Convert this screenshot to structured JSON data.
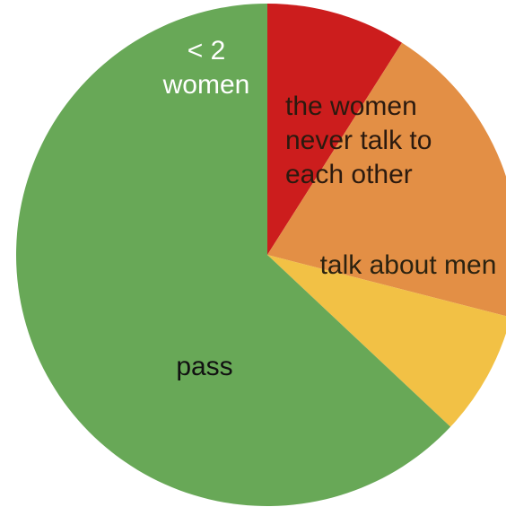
{
  "chart_data": {
    "type": "pie",
    "slices": [
      {
        "label": "< 2 women",
        "label_lines": [
          "< 2",
          "women"
        ],
        "value": 9,
        "color": "#cc1d1d",
        "text_color": "#ffffff"
      },
      {
        "label": "the women never talk to each other",
        "label_lines": [
          "the women",
          "never talk to",
          "each other"
        ],
        "value": 20,
        "color": "#e38f45",
        "text_color": "#2b1a0f"
      },
      {
        "label": "talk about men",
        "label_lines": [
          "talk about men"
        ],
        "value": 8,
        "color": "#f2c145",
        "text_color": "#2b2210"
      },
      {
        "label": "pass",
        "label_lines": [
          "pass"
        ],
        "value": 63,
        "color": "#68a857",
        "text_color": "#111111"
      }
    ],
    "start": "12 o'clock",
    "direction": "clockwise",
    "legend": "none (labels drawn on slices)"
  }
}
